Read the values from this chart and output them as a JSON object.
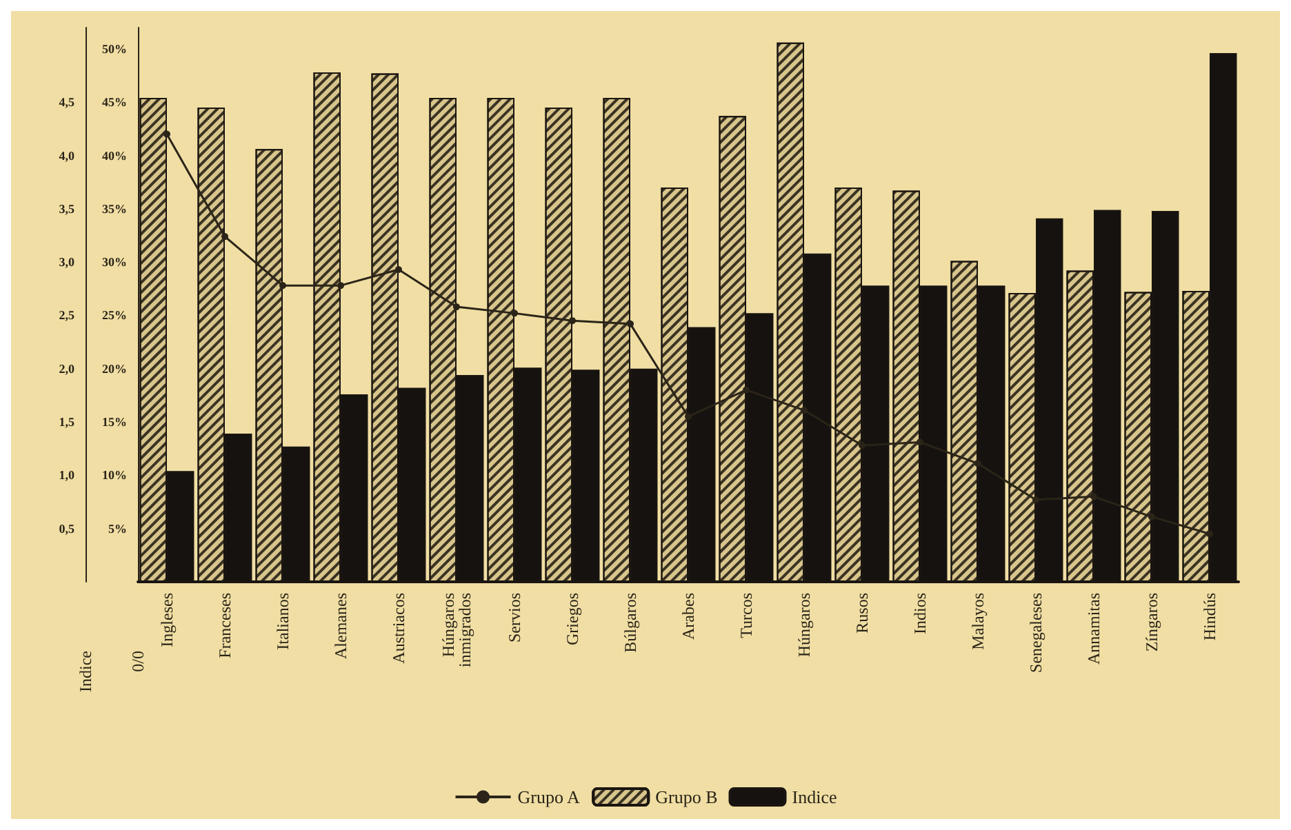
{
  "chart_data": {
    "type": "bar",
    "xlabel": null,
    "ylabel": "0/0",
    "y2label": "Indice",
    "categories": [
      "Ingleses",
      "Franceses",
      "Italianos",
      "Alemanes",
      "Austriacos",
      "Húngaros inmigrados",
      "Servios",
      "Griegos",
      "Búlgaros",
      "Arabes",
      "Turcos",
      "Húngaros",
      "Rusos",
      "Indios",
      "Malayos",
      "Senegaleses",
      "Annamitas",
      "Zíngaros",
      "Hindús"
    ],
    "series": [
      {
        "name": "Grupo A",
        "type": "line",
        "color": "#2b2418",
        "values": [
          42.0,
          32.4,
          27.8,
          27.8,
          29.3,
          25.8,
          25.2,
          24.5,
          24.2,
          15.5,
          18.0,
          16.1,
          12.8,
          13.1,
          11.1,
          7.7,
          8.0,
          6.1,
          4.5
        ]
      },
      {
        "name": "Grupo B",
        "color": "#d8c58c",
        "values": [
          45.4,
          44.5,
          40.6,
          47.8,
          47.7,
          45.4,
          45.4,
          44.5,
          45.4,
          37.0,
          43.7,
          50.6,
          37.0,
          36.7,
          30.1,
          27.1,
          29.2,
          27.2,
          27.3
        ]
      },
      {
        "name": "Indice",
        "color": "#151210",
        "values": [
          10.4,
          13.9,
          12.7,
          17.6,
          18.2,
          19.4,
          20.1,
          19.9,
          20.0,
          23.9,
          25.2,
          30.8,
          27.8,
          27.8,
          27.8,
          34.1,
          34.9,
          34.8,
          49.6
        ]
      }
    ],
    "ylim": [
      0,
      52
    ],
    "yticks": [
      {
        "value": 5,
        "label": "5%"
      },
      {
        "value": 10,
        "label": "10%"
      },
      {
        "value": 15,
        "label": "15%"
      },
      {
        "value": 20,
        "label": "20%"
      },
      {
        "value": 25,
        "label": "25%"
      },
      {
        "value": 30,
        "label": "30%"
      },
      {
        "value": 35,
        "label": "35%"
      },
      {
        "value": 40,
        "label": "40%"
      },
      {
        "value": 45,
        "label": "45%"
      },
      {
        "value": 50,
        "label": "50%"
      }
    ],
    "y2lim": [
      0,
      5.2
    ],
    "y2ticks": [
      {
        "value": 0.5,
        "label": "0,5"
      },
      {
        "value": 1,
        "label": "1,0"
      },
      {
        "value": 1.5,
        "label": "1,5"
      },
      {
        "value": 2,
        "label": "2,0"
      },
      {
        "value": 2.5,
        "label": "2,5"
      },
      {
        "value": 3,
        "label": "3,0"
      },
      {
        "value": 3.5,
        "label": "3,5"
      },
      {
        "value": 4,
        "label": "4,0"
      },
      {
        "value": 4.5,
        "label": "4,5"
      }
    ],
    "marker": "circle",
    "line_style": "solid",
    "grid": false,
    "legend": "bottom"
  }
}
